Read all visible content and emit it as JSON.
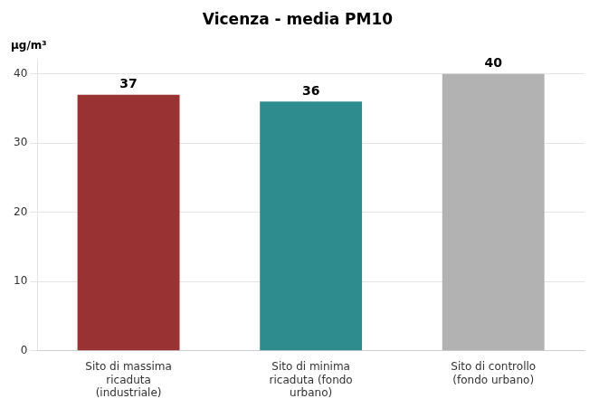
{
  "chart_data": {
    "type": "bar",
    "title": "Vicenza - media PM10",
    "ylabel": "μg/m³",
    "categories": [
      "Sito di massima\nricaduta\n(industriale)",
      "Sito di minima\nricaduta (fondo\nurbano)",
      "Sito di controllo\n(fondo urbano)"
    ],
    "values": [
      37,
      36,
      40
    ],
    "colors": [
      "#993333",
      "#2e8b8e",
      "#b2b2b2"
    ],
    "ylim": [
      0,
      42
    ],
    "yticks": [
      0,
      10,
      20,
      30,
      40
    ],
    "grid": true,
    "data_labels": true
  }
}
